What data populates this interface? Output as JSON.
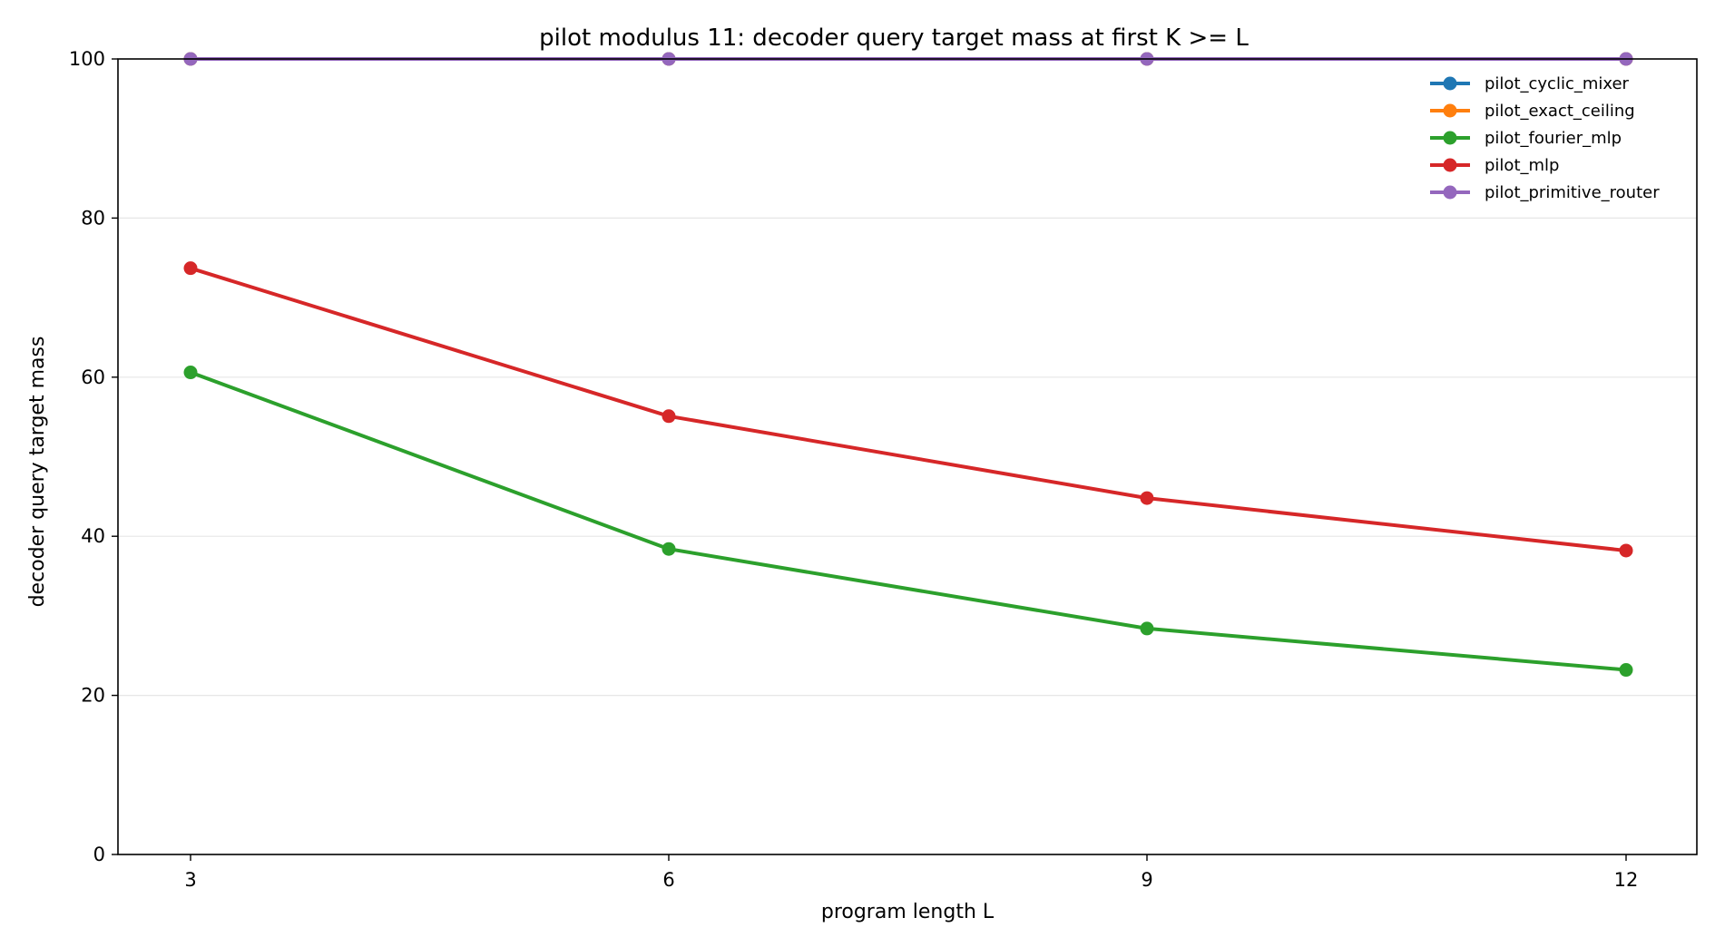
{
  "chart_data": {
    "type": "line",
    "title": "pilot modulus 11: decoder query target mass at first K >= L",
    "xlabel": "program length L",
    "ylabel": "decoder query target mass",
    "x": [
      3,
      6,
      9,
      12
    ],
    "x_ticks": [
      "3",
      "6",
      "9",
      "12"
    ],
    "y_ticks": [
      "0",
      "20",
      "40",
      "60",
      "80",
      "100"
    ],
    "ylim": [
      0,
      100
    ],
    "grid": "horizontal",
    "legend_position": "top-right",
    "series": [
      {
        "name": "pilot_cyclic_mixer",
        "color": "#1f77b4",
        "values": [
          100,
          100,
          100,
          100
        ]
      },
      {
        "name": "pilot_exact_ceiling",
        "color": "#ff7f0e",
        "values": [
          100,
          100,
          100,
          100
        ]
      },
      {
        "name": "pilot_fourier_mlp",
        "color": "#2ca02c",
        "values": [
          60.6,
          38.4,
          28.4,
          23.2
        ]
      },
      {
        "name": "pilot_mlp",
        "color": "#d62728",
        "values": [
          73.7,
          55.1,
          44.8,
          38.2
        ]
      },
      {
        "name": "pilot_primitive_router",
        "color": "#9467bd",
        "values": [
          100,
          100,
          100,
          100
        ]
      }
    ]
  }
}
